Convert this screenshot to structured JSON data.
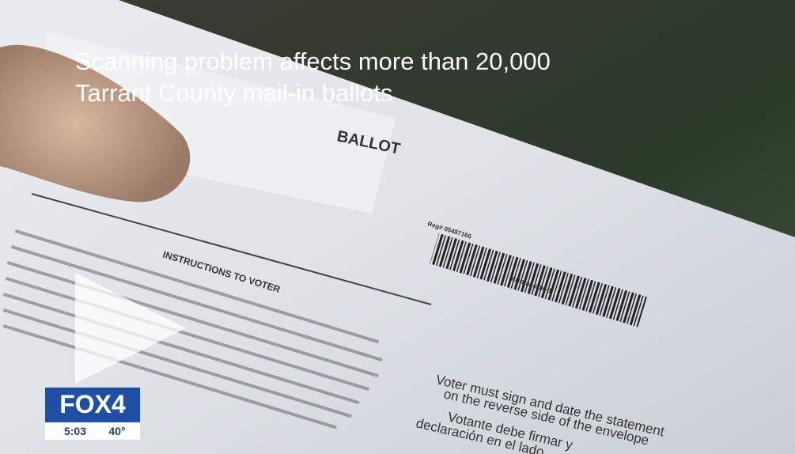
{
  "video": {
    "headline": [
      "Scanning problem affects more than 20,000",
      "Tarrant County mail-in ballots"
    ],
    "ballot": {
      "label": "BALLOT",
      "instructions_heading": "INSTRUCTIONS TO VOTER",
      "registration": "Reg# 05487166",
      "barcode_id": "AUR-864586-1",
      "english_note": [
        "Voter must sign and date the statement",
        "on the reverse side of the envelope"
      ],
      "spanish_note": [
        "Votante debe firmar y",
        "declaración en el lado"
      ]
    },
    "logo": {
      "name": "FOX4",
      "time": "5:03",
      "temperature": "40°"
    }
  }
}
